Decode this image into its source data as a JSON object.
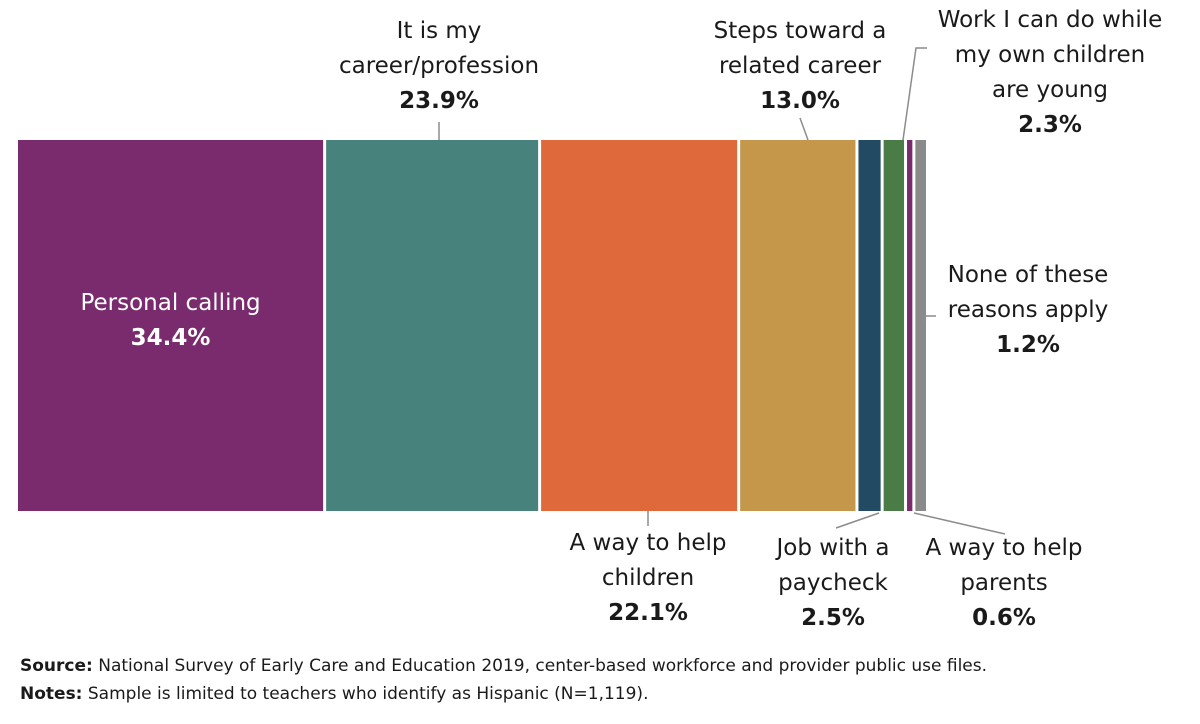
{
  "chart_data": {
    "type": "bar",
    "subtype": "stacked-100-percent-single",
    "unit": "%",
    "segments": [
      {
        "label_lines": [
          "Personal calling"
        ],
        "value": 34.4,
        "value_label": "34.4%",
        "color": "#7a2b6d",
        "label_pos": "inside"
      },
      {
        "label_lines": [
          "It is my",
          "career/profession"
        ],
        "value": 23.9,
        "value_label": "23.9%",
        "color": "#47837c",
        "label_pos": "above"
      },
      {
        "label_lines": [
          "A way to help",
          "children"
        ],
        "value": 22.1,
        "value_label": "22.1%",
        "color": "#df693a",
        "label_pos": "below"
      },
      {
        "label_lines": [
          "Steps toward a",
          "related career"
        ],
        "value": 13.0,
        "value_label": "13.0%",
        "color": "#c4974a",
        "label_pos": "above"
      },
      {
        "label_lines": [
          "Job with a",
          "paycheck"
        ],
        "value": 2.5,
        "value_label": "2.5%",
        "color": "#234a63",
        "label_pos": "below"
      },
      {
        "label_lines": [
          "Work I can do while",
          "my own children",
          "are young"
        ],
        "value": 2.3,
        "value_label": "2.3%",
        "color": "#4a7d45",
        "label_pos": "above"
      },
      {
        "label_lines": [
          "A way to help",
          "parents"
        ],
        "value": 0.6,
        "value_label": "0.6%",
        "color": "#7a2b6d",
        "label_pos": "below"
      },
      {
        "label_lines": [
          "None of these",
          "reasons apply"
        ],
        "value": 1.2,
        "value_label": "1.2%",
        "color": "#8a8a8a",
        "label_pos": "right"
      }
    ]
  },
  "footer": {
    "source_label": "Source:",
    "source_text": " National Survey of Early Care and Education 2019, center-based workforce and provider public use files.",
    "notes_label": "Notes:",
    "notes_text": " Sample is limited to teachers who identify as Hispanic (N=1,119)."
  }
}
